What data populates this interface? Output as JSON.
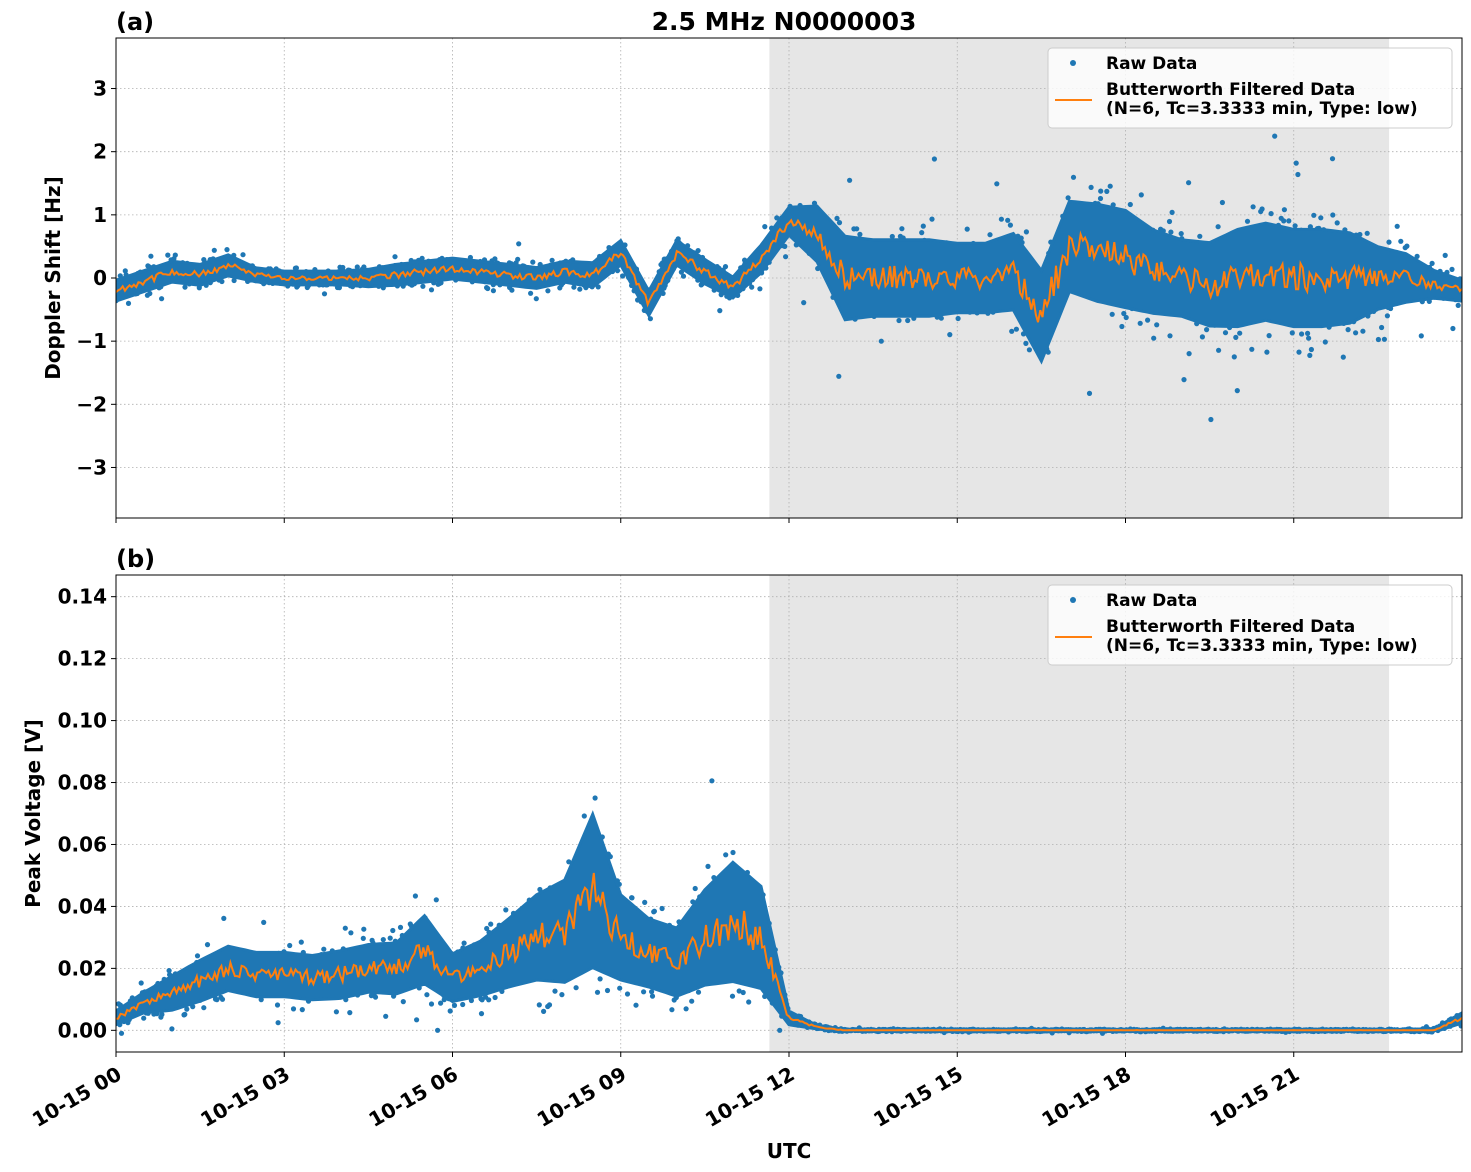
{
  "figure": {
    "title": "2.5 MHz N0000003",
    "xlabel": "UTC",
    "colors": {
      "raw": "#1f77b4",
      "filtered": "#ff7f0e",
      "shade": "#e6e6e6",
      "grid": "#b0b0b0"
    }
  },
  "chart_data": [
    {
      "type": "scatter",
      "panel_label": "(a)",
      "ylabel": "Doppler Shift [Hz]",
      "xlim": [
        0,
        24
      ],
      "ylim": [
        -3.8,
        3.8
      ],
      "y_ticks": [
        -3,
        -2,
        -1,
        0,
        1,
        2,
        3
      ],
      "y_tick_labels": [
        "−3",
        "−2",
        "−1",
        "0",
        "1",
        "2",
        "3"
      ],
      "x_ticks": [
        0,
        3,
        6,
        9,
        12,
        15,
        18,
        21
      ],
      "x_tick_labels": [
        "10-15 00",
        "10-15 03",
        "10-15 06",
        "10-15 09",
        "10-15 12",
        "10-15 15",
        "10-15 18",
        "10-15 21"
      ],
      "grid": true,
      "shaded_interval_hours": [
        11.65,
        22.7
      ],
      "legend": {
        "placement": "top-right",
        "entries": [
          "Raw Data",
          "Butterworth Filtered Data",
          "(N=6, Tc=3.3333 min, Type: low)"
        ]
      },
      "series": [
        {
          "name": "Raw Data",
          "style": "points",
          "x": [
            0,
            0.5,
            1,
            1.5,
            2,
            2.5,
            3,
            3.5,
            4,
            4.5,
            5,
            5.5,
            6,
            6.5,
            7,
            7.5,
            8,
            8.5,
            9,
            9.5,
            10,
            10.5,
            11,
            11.5,
            12,
            12.5,
            13,
            13.5,
            14,
            14.5,
            15,
            15.5,
            16,
            16.5,
            17,
            17.5,
            18,
            18.5,
            19,
            19.5,
            20,
            20.5,
            21,
            21.5,
            22,
            22.5,
            23,
            23.5,
            24
          ],
          "y_center": [
            -0.2,
            -0.05,
            0.1,
            0.05,
            0.2,
            0.05,
            0.0,
            0.0,
            0.0,
            0.0,
            0.05,
            0.1,
            0.15,
            0.1,
            0.05,
            0.0,
            0.1,
            0.05,
            0.4,
            -0.4,
            0.4,
            0.1,
            -0.15,
            0.3,
            0.9,
            0.7,
            0.0,
            0.0,
            0.0,
            0.0,
            0.0,
            0.0,
            0.1,
            -0.6,
            0.5,
            0.4,
            0.3,
            0.1,
            0.0,
            -0.1,
            0.0,
            0.1,
            0.0,
            0.0,
            0.0,
            0.0,
            0.0,
            -0.1,
            -0.2
          ],
          "y_spread": [
            0.3,
            0.3,
            0.3,
            0.3,
            0.3,
            0.2,
            0.2,
            0.2,
            0.2,
            0.25,
            0.3,
            0.3,
            0.3,
            0.3,
            0.3,
            0.3,
            0.3,
            0.35,
            0.35,
            0.35,
            0.35,
            0.35,
            0.3,
            0.4,
            0.4,
            0.8,
            1.2,
            1.1,
            1.1,
            1.1,
            1.0,
            1.0,
            1.1,
            1.3,
            1.3,
            1.4,
            1.4,
            1.2,
            1.1,
            1.2,
            1.4,
            1.4,
            1.4,
            1.4,
            1.3,
            0.9,
            0.7,
            0.4,
            0.3
          ]
        },
        {
          "name": "Butterworth Filtered Data",
          "style": "line",
          "x": [
            0,
            0.5,
            1,
            1.5,
            2,
            2.5,
            3,
            3.5,
            4,
            4.5,
            5,
            5.5,
            6,
            6.5,
            7,
            7.5,
            8,
            8.5,
            9,
            9.5,
            10,
            10.5,
            11,
            11.5,
            12,
            12.5,
            13,
            13.5,
            14,
            14.5,
            15,
            15.5,
            16,
            16.5,
            17,
            17.5,
            18,
            18.5,
            19,
            19.5,
            20,
            20.5,
            21,
            21.5,
            22,
            22.5,
            23,
            23.5,
            24
          ],
          "y": [
            -0.2,
            -0.05,
            0.1,
            0.05,
            0.2,
            0.05,
            0.0,
            0.0,
            0.0,
            0.0,
            0.05,
            0.1,
            0.15,
            0.1,
            0.05,
            0.0,
            0.1,
            0.05,
            0.4,
            -0.4,
            0.4,
            0.1,
            -0.15,
            0.3,
            0.9,
            0.7,
            0.0,
            0.0,
            0.0,
            0.0,
            0.0,
            0.0,
            0.1,
            -0.6,
            0.5,
            0.4,
            0.3,
            0.1,
            0.0,
            -0.1,
            0.0,
            0.1,
            0.0,
            0.0,
            0.0,
            0.0,
            0.0,
            -0.1,
            -0.2
          ]
        }
      ]
    },
    {
      "type": "scatter",
      "panel_label": "(b)",
      "ylabel": "Peak Voltage [V]",
      "xlim": [
        0,
        24
      ],
      "ylim": [
        -0.007,
        0.147
      ],
      "y_ticks": [
        0.0,
        0.02,
        0.04,
        0.06,
        0.08,
        0.1,
        0.12,
        0.14
      ],
      "y_tick_labels": [
        "0.00",
        "0.02",
        "0.04",
        "0.06",
        "0.08",
        "0.10",
        "0.12",
        "0.14"
      ],
      "x_ticks": [
        0,
        3,
        6,
        9,
        12,
        15,
        18,
        21
      ],
      "x_tick_labels": [
        "10-15 00",
        "10-15 03",
        "10-15 06",
        "10-15 09",
        "10-15 12",
        "10-15 15",
        "10-15 18",
        "10-15 21"
      ],
      "grid": true,
      "shaded_interval_hours": [
        11.65,
        22.7
      ],
      "legend": {
        "placement": "top-right",
        "entries": [
          "Raw Data",
          "Butterworth Filtered Data",
          "(N=6, Tc=3.3333 min, Type: low)"
        ]
      },
      "series": [
        {
          "name": "Raw Data",
          "style": "points",
          "x": [
            0,
            0.5,
            1,
            1.5,
            2,
            2.5,
            3,
            3.5,
            4,
            4.5,
            5,
            5.5,
            6,
            6.5,
            7,
            7.5,
            8,
            8.5,
            9,
            9.5,
            10,
            10.5,
            11,
            11.5,
            12,
            12.5,
            13,
            13.5,
            14,
            14.5,
            15,
            15.5,
            16,
            16.5,
            17,
            17.5,
            18,
            18.5,
            19,
            19.5,
            20,
            20.5,
            21,
            21.5,
            22,
            22.5,
            23,
            23.5,
            24
          ],
          "y_center": [
            0.004,
            0.009,
            0.012,
            0.016,
            0.02,
            0.018,
            0.018,
            0.017,
            0.018,
            0.02,
            0.02,
            0.026,
            0.017,
            0.02,
            0.025,
            0.03,
            0.032,
            0.045,
            0.03,
            0.025,
            0.022,
            0.03,
            0.035,
            0.03,
            0.004,
            0.001,
            0.0,
            0.0,
            0.0,
            0.0,
            0.0,
            0.0,
            0.0,
            0.0,
            0.0,
            0.0,
            0.0,
            0.0,
            0.0,
            0.0,
            0.0,
            0.0,
            0.0,
            0.0,
            0.0,
            0.0,
            0.0,
            0.0,
            0.004
          ],
          "y_spread": [
            0.004,
            0.006,
            0.01,
            0.012,
            0.013,
            0.013,
            0.013,
            0.013,
            0.014,
            0.014,
            0.015,
            0.02,
            0.014,
            0.016,
            0.02,
            0.025,
            0.03,
            0.045,
            0.025,
            0.02,
            0.02,
            0.028,
            0.035,
            0.03,
            0.004,
            0.001,
            0.0005,
            0.0005,
            0.0005,
            0.0005,
            0.0005,
            0.0005,
            0.0005,
            0.0005,
            0.0005,
            0.0005,
            0.0005,
            0.0005,
            0.0005,
            0.0005,
            0.0005,
            0.0005,
            0.0005,
            0.0005,
            0.0005,
            0.0005,
            0.0005,
            0.001,
            0.003
          ]
        },
        {
          "name": "Butterworth Filtered Data",
          "style": "line",
          "x": [
            0,
            0.5,
            1,
            1.5,
            2,
            2.5,
            3,
            3.5,
            4,
            4.5,
            5,
            5.5,
            6,
            6.5,
            7,
            7.5,
            8,
            8.5,
            9,
            9.5,
            10,
            10.5,
            11,
            11.5,
            12,
            12.5,
            13,
            13.5,
            14,
            14.5,
            15,
            15.5,
            16,
            16.5,
            17,
            17.5,
            18,
            18.5,
            19,
            19.5,
            20,
            20.5,
            21,
            21.5,
            22,
            22.5,
            23,
            23.5,
            24
          ],
          "y": [
            0.004,
            0.009,
            0.012,
            0.016,
            0.02,
            0.018,
            0.018,
            0.017,
            0.018,
            0.02,
            0.02,
            0.026,
            0.017,
            0.02,
            0.025,
            0.03,
            0.032,
            0.045,
            0.03,
            0.025,
            0.022,
            0.03,
            0.035,
            0.03,
            0.004,
            0.001,
            0.0,
            0.0,
            0.0,
            0.0,
            0.0,
            0.0,
            0.0,
            0.0,
            0.0,
            0.0,
            0.0,
            0.0,
            0.0,
            0.0,
            0.0,
            0.0,
            0.0,
            0.0,
            0.0,
            0.0,
            0.0,
            0.0,
            0.004
          ]
        }
      ]
    }
  ]
}
